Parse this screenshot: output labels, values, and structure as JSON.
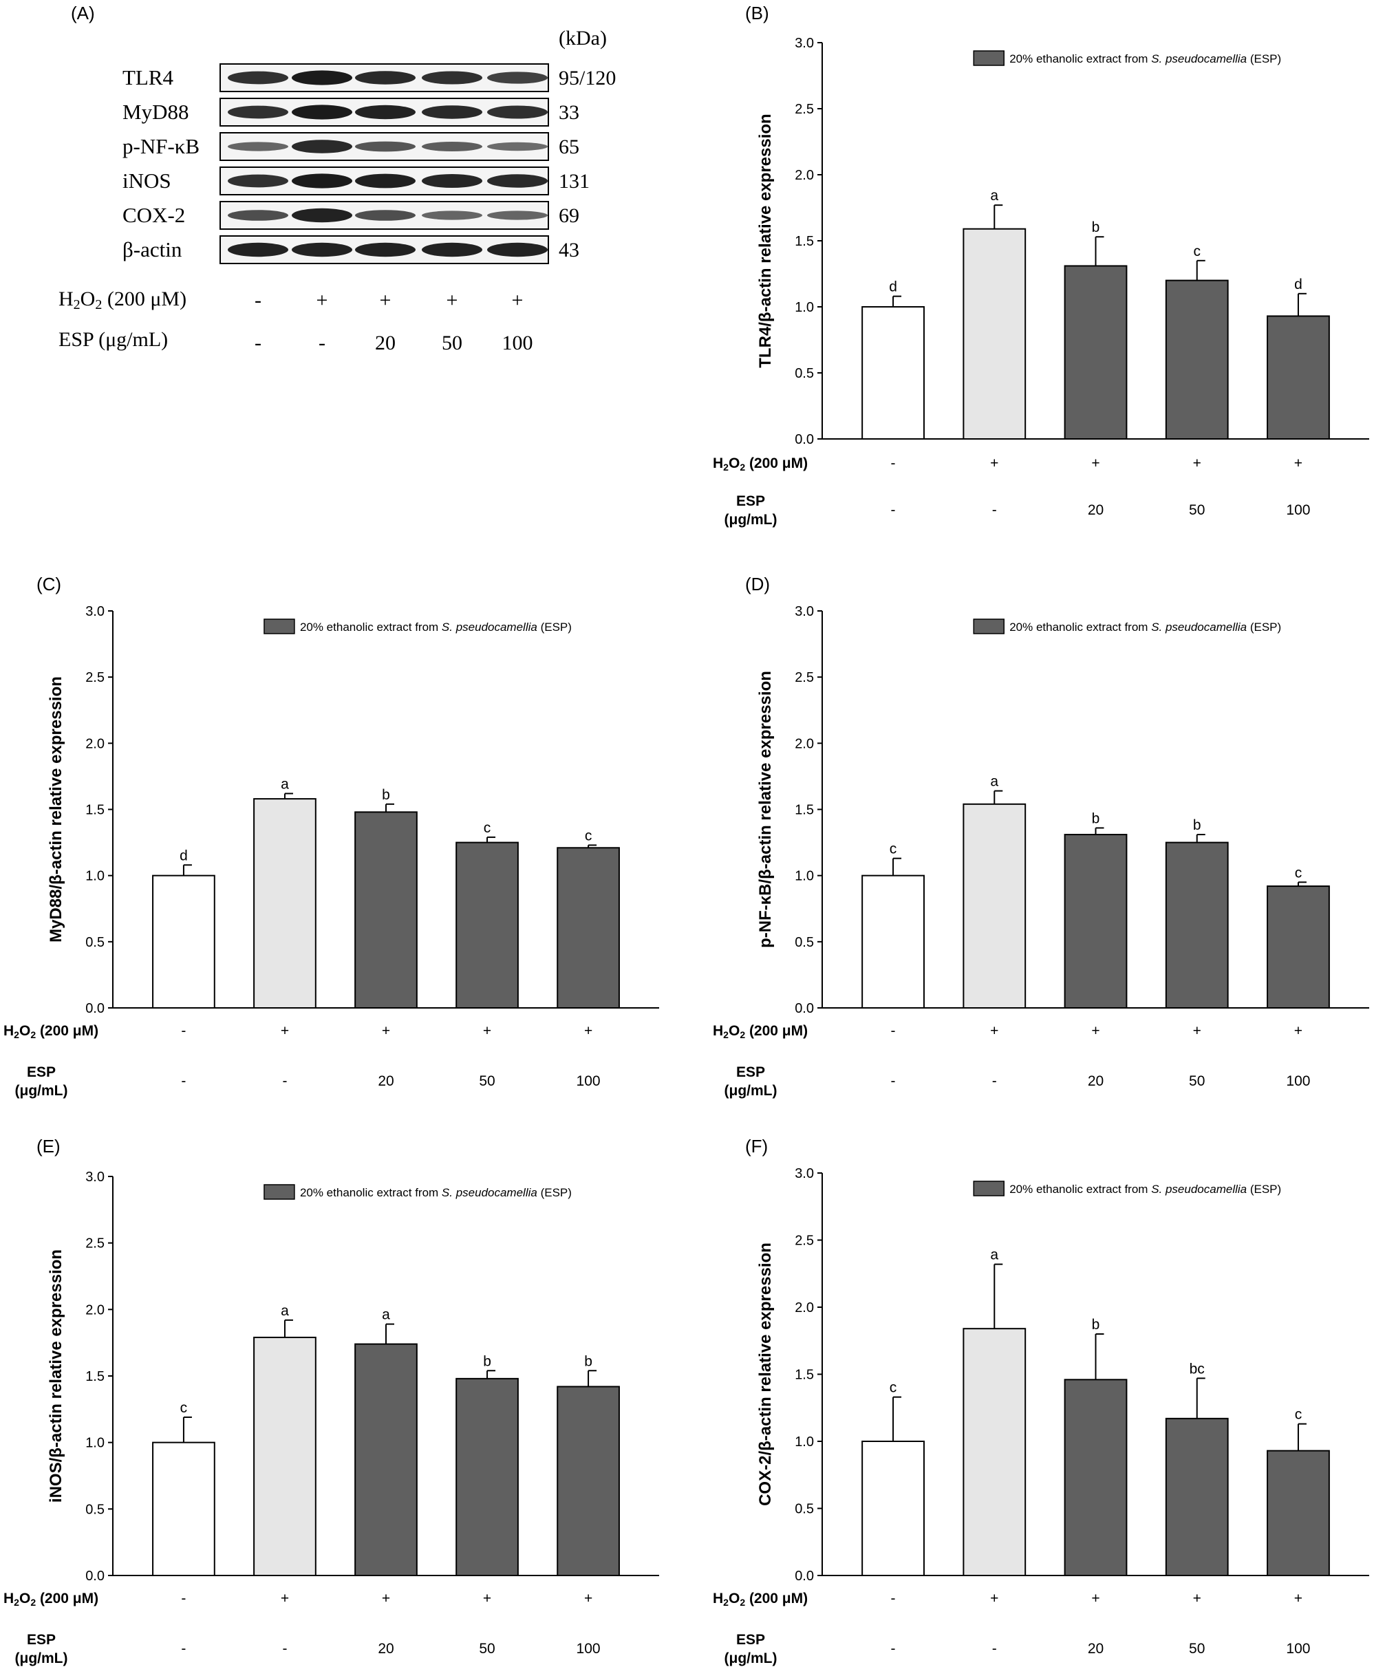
{
  "western_blot": {
    "panel_label": "(A)",
    "unit_label": "(kDa)",
    "bands": [
      {
        "protein": "TLR4",
        "kda": "95/120",
        "intensity": [
          0.8,
          0.95,
          0.85,
          0.82,
          0.7
        ]
      },
      {
        "protein": "MyD88",
        "kda": "33",
        "intensity": [
          0.8,
          0.95,
          0.9,
          0.85,
          0.82
        ]
      },
      {
        "protein": "p-NF-κB",
        "kda": "65",
        "intensity": [
          0.45,
          0.85,
          0.55,
          0.5,
          0.4
        ]
      },
      {
        "protein": "iNOS",
        "kda": "131",
        "intensity": [
          0.8,
          0.95,
          0.92,
          0.88,
          0.85
        ]
      },
      {
        "protein": "COX-2",
        "kda": "69",
        "intensity": [
          0.6,
          0.9,
          0.6,
          0.45,
          0.45
        ]
      },
      {
        "protein": "β-actin",
        "kda": "43",
        "intensity": [
          0.9,
          0.9,
          0.9,
          0.9,
          0.9
        ]
      }
    ],
    "h2o2_label": "H2O2 (200 μM)",
    "h2o2_values": [
      "-",
      "+",
      "+",
      "+",
      "+"
    ],
    "esp_label": "ESP (μg/mL)",
    "esp_values": [
      "-",
      "-",
      "20",
      "50",
      "100"
    ]
  },
  "chart_data": [
    {
      "panel_label": "(B)",
      "type": "bar",
      "ylabel": "TLR4/β-actin relative expression",
      "ylim": [
        0,
        3.0
      ],
      "yticks": [
        "0.0",
        "0.5",
        "1.0",
        "1.5",
        "2.0",
        "2.5",
        "3.0"
      ],
      "legend": {
        "prefix": "20% ethanolic extract from ",
        "species": "S. pseudocamellia",
        "suffix": " (ESP)"
      },
      "values": [
        1.0,
        1.59,
        1.31,
        1.2,
        0.93
      ],
      "errors": [
        0.08,
        0.18,
        0.22,
        0.15,
        0.17
      ],
      "letters": [
        "d",
        "a",
        "b",
        "c",
        "d"
      ],
      "h2o2_label": "H2O2 (200 μM)",
      "h2o2": [
        "-",
        "+",
        "+",
        "+",
        "+"
      ],
      "esp_label_line1": "ESP",
      "esp_label_line2": "(μg/mL)",
      "esp": [
        "-",
        "-",
        "20",
        "50",
        "100"
      ]
    },
    {
      "panel_label": "(C)",
      "type": "bar",
      "ylabel": "MyD88/β-actin relative expression",
      "ylim": [
        0,
        3.0
      ],
      "yticks": [
        "0.0",
        "0.5",
        "1.0",
        "1.5",
        "2.0",
        "2.5",
        "3.0"
      ],
      "legend": {
        "prefix": "20% ethanolic extract from ",
        "species": "S. pseudocamellia",
        "suffix": " (ESP)"
      },
      "values": [
        1.0,
        1.58,
        1.48,
        1.25,
        1.21
      ],
      "errors": [
        0.08,
        0.04,
        0.06,
        0.04,
        0.02
      ],
      "letters": [
        "d",
        "a",
        "b",
        "c",
        "c"
      ],
      "h2o2_label": "H2O2 (200 μM)",
      "h2o2": [
        "-",
        "+",
        "+",
        "+",
        "+"
      ],
      "esp_label_line1": "ESP",
      "esp_label_line2": "(μg/mL)",
      "esp": [
        "-",
        "-",
        "20",
        "50",
        "100"
      ]
    },
    {
      "panel_label": "(D)",
      "type": "bar",
      "ylabel": "p-NF-κB/β-actin relative expression",
      "ylim": [
        0,
        3.0
      ],
      "yticks": [
        "0.0",
        "0.5",
        "1.0",
        "1.5",
        "2.0",
        "2.5",
        "3.0"
      ],
      "legend": {
        "prefix": "20% ethanolic extract from ",
        "species": "S. pseudocamellia",
        "suffix": " (ESP)"
      },
      "values": [
        1.0,
        1.54,
        1.31,
        1.25,
        0.92
      ],
      "errors": [
        0.13,
        0.1,
        0.05,
        0.06,
        0.03
      ],
      "letters": [
        "c",
        "a",
        "b",
        "b",
        "c"
      ],
      "h2o2_label": "H2O2 (200 μM)",
      "h2o2": [
        "-",
        "+",
        "+",
        "+",
        "+"
      ],
      "esp_label_line1": "ESP",
      "esp_label_line2": "(μg/mL)",
      "esp": [
        "-",
        "-",
        "20",
        "50",
        "100"
      ]
    },
    {
      "panel_label": "(E)",
      "type": "bar",
      "ylabel": "iNOS/β-actin relative expression",
      "ylim": [
        0,
        3.0
      ],
      "yticks": [
        "0.0",
        "0.5",
        "1.0",
        "1.5",
        "2.0",
        "2.5",
        "3.0"
      ],
      "legend": {
        "prefix": "20% ethanolic extract from ",
        "species": "S. pseudocamellia",
        "suffix": " (ESP)"
      },
      "values": [
        1.0,
        1.79,
        1.74,
        1.48,
        1.42
      ],
      "errors": [
        0.19,
        0.13,
        0.15,
        0.06,
        0.12
      ],
      "letters": [
        "c",
        "a",
        "a",
        "b",
        "b"
      ],
      "h2o2_label": "H2O2 (200 μM)",
      "h2o2": [
        "-",
        "+",
        "+",
        "+",
        "+"
      ],
      "esp_label_line1": "ESP",
      "esp_label_line2": "(μg/mL)",
      "esp": [
        "-",
        "-",
        "20",
        "50",
        "100"
      ]
    },
    {
      "panel_label": "(F)",
      "type": "bar",
      "ylabel": "COX-2/β-actin relative expression",
      "ylim": [
        0,
        3.0
      ],
      "yticks": [
        "0.0",
        "0.5",
        "1.0",
        "1.5",
        "2.0",
        "2.5",
        "3.0"
      ],
      "legend": {
        "prefix": "20% ethanolic extract from ",
        "species": "S. pseudocamellia",
        "suffix": " (ESP)"
      },
      "values": [
        1.0,
        1.84,
        1.46,
        1.17,
        0.93
      ],
      "errors": [
        0.33,
        0.48,
        0.34,
        0.3,
        0.2
      ],
      "letters": [
        "c",
        "a",
        "b",
        "bc",
        "c"
      ],
      "h2o2_label": "H2O2 (200 μM)",
      "h2o2": [
        "-",
        "+",
        "+",
        "+",
        "+"
      ],
      "esp_label_line1": "ESP",
      "esp_label_line2": "(μg/mL)",
      "esp": [
        "-",
        "-",
        "20",
        "50",
        "100"
      ]
    }
  ],
  "colors": {
    "control_fill": "#ffffff",
    "h2o2_fill": "#e6e6e6",
    "esp_fill": "#606060",
    "stroke": "#000000",
    "band": "#141414"
  }
}
